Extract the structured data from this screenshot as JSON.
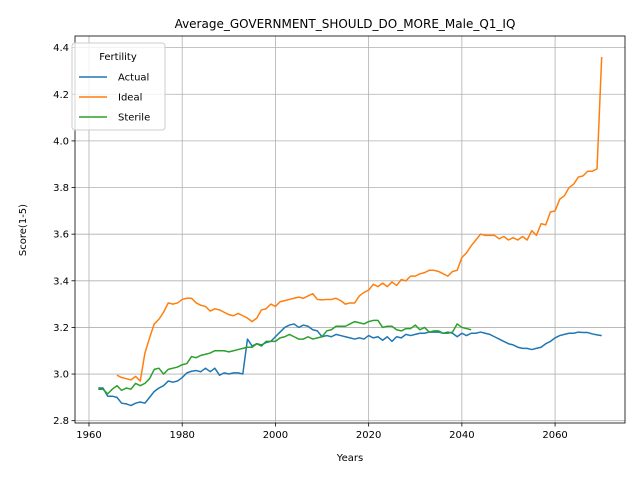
{
  "chart_data": {
    "type": "line",
    "title": "Average_GOVERNMENT_SHOULD_DO_MORE_Male_Q1_IQ",
    "xlabel": "Years",
    "ylabel": "Score(1-5)",
    "xlim": [
      1957,
      2075
    ],
    "ylim": [
      2.79,
      4.45
    ],
    "xticks": [
      1960,
      1980,
      2000,
      2020,
      2040,
      2060
    ],
    "yticks": [
      2.8,
      3.0,
      3.2,
      3.4,
      3.6,
      3.8,
      4.0,
      4.2,
      4.4
    ],
    "xtick_labels": [
      "1960",
      "1980",
      "2000",
      "2020",
      "2040",
      "2060"
    ],
    "ytick_labels": [
      "2.8",
      "3.0",
      "3.2",
      "3.4",
      "3.6",
      "3.8",
      "4.0",
      "4.2",
      "4.4"
    ],
    "grid": true,
    "legend": {
      "title": "Fertility",
      "position": "top-left"
    },
    "series": [
      {
        "name": "Actual",
        "color": "#1f77b4",
        "x": [
          1962,
          1963,
          1964,
          1965,
          1966,
          1967,
          1968,
          1969,
          1970,
          1971,
          1972,
          1973,
          1974,
          1975,
          1976,
          1977,
          1978,
          1979,
          1980,
          1981,
          1982,
          1983,
          1984,
          1985,
          1986,
          1987,
          1988,
          1989,
          1990,
          1991,
          1992,
          1993,
          1994,
          1995,
          1996,
          1997,
          1998,
          1999,
          2000,
          2001,
          2002,
          2003,
          2004,
          2005,
          2006,
          2007,
          2008,
          2009,
          2010,
          2011,
          2012,
          2013,
          2014,
          2015,
          2016,
          2017,
          2018,
          2019,
          2020,
          2021,
          2022,
          2023,
          2024,
          2025,
          2026,
          2027,
          2028,
          2029,
          2030,
          2031,
          2032,
          2033,
          2034,
          2035,
          2036,
          2037,
          2038,
          2039,
          2040,
          2041,
          2042,
          2043,
          2044,
          2045,
          2046,
          2047,
          2048,
          2049,
          2050,
          2051,
          2052,
          2053,
          2054,
          2055,
          2056,
          2057,
          2058,
          2059,
          2060,
          2061,
          2062,
          2063,
          2064,
          2065,
          2066,
          2067,
          2068,
          2069,
          2070
        ],
        "y": [
          2.94,
          2.94,
          2.905,
          2.905,
          2.9,
          2.875,
          2.872,
          2.865,
          2.875,
          2.88,
          2.875,
          2.9,
          2.925,
          2.94,
          2.95,
          2.97,
          2.965,
          2.97,
          2.985,
          3.005,
          3.012,
          3.015,
          3.01,
          3.025,
          3.01,
          3.025,
          2.995,
          3.005,
          3.0,
          3.005,
          3.005,
          3.0,
          3.15,
          3.12,
          3.13,
          3.125,
          3.135,
          3.14,
          3.16,
          3.18,
          3.2,
          3.21,
          3.215,
          3.2,
          3.21,
          3.205,
          3.19,
          3.185,
          3.16,
          3.165,
          3.16,
          3.17,
          3.165,
          3.16,
          3.155,
          3.15,
          3.155,
          3.15,
          3.165,
          3.155,
          3.16,
          3.145,
          3.16,
          3.14,
          3.16,
          3.155,
          3.17,
          3.165,
          3.17,
          3.175,
          3.175,
          3.18,
          3.18,
          3.18,
          3.175,
          3.18,
          3.175,
          3.16,
          3.175,
          3.165,
          3.175,
          3.175,
          3.18,
          3.175,
          3.17,
          3.16,
          3.15,
          3.14,
          3.13,
          3.125,
          3.115,
          3.11,
          3.11,
          3.105,
          3.11,
          3.115,
          3.13,
          3.14,
          3.155,
          3.165,
          3.17,
          3.175,
          3.175,
          3.18,
          3.178,
          3.178,
          3.172,
          3.168,
          3.165
        ]
      },
      {
        "name": "Ideal",
        "color": "#ff7f0e",
        "x": [
          1966,
          1967,
          1968,
          1969,
          1970,
          1971,
          1972,
          1973,
          1974,
          1975,
          1976,
          1977,
          1978,
          1979,
          1980,
          1981,
          1982,
          1983,
          1984,
          1985,
          1986,
          1987,
          1988,
          1989,
          1990,
          1991,
          1992,
          1993,
          1994,
          1995,
          1996,
          1997,
          1998,
          1999,
          2000,
          2001,
          2002,
          2003,
          2004,
          2005,
          2006,
          2007,
          2008,
          2009,
          2010,
          2011,
          2012,
          2013,
          2014,
          2015,
          2016,
          2017,
          2018,
          2019,
          2020,
          2021,
          2022,
          2023,
          2024,
          2025,
          2026,
          2027,
          2028,
          2029,
          2030,
          2031,
          2032,
          2033,
          2034,
          2035,
          2036,
          2037,
          2038,
          2039,
          2040,
          2041,
          2042,
          2043,
          2044,
          2045,
          2046,
          2047,
          2048,
          2049,
          2050,
          2051,
          2052,
          2053,
          2054,
          2055,
          2056,
          2057,
          2058,
          2059,
          2060,
          2061,
          2062,
          2063,
          2064,
          2065,
          2066,
          2067,
          2068,
          2069,
          2070
        ],
        "y": [
          2.995,
          2.985,
          2.98,
          2.975,
          2.99,
          2.97,
          3.09,
          3.155,
          3.215,
          3.235,
          3.265,
          3.305,
          3.3,
          3.305,
          3.32,
          3.325,
          3.325,
          3.305,
          3.295,
          3.29,
          3.27,
          3.28,
          3.275,
          3.265,
          3.255,
          3.25,
          3.26,
          3.25,
          3.24,
          3.225,
          3.24,
          3.275,
          3.28,
          3.3,
          3.29,
          3.31,
          3.315,
          3.32,
          3.325,
          3.33,
          3.325,
          3.335,
          3.345,
          3.32,
          3.318,
          3.32,
          3.32,
          3.325,
          3.315,
          3.3,
          3.305,
          3.305,
          3.335,
          3.35,
          3.36,
          3.385,
          3.375,
          3.39,
          3.375,
          3.395,
          3.38,
          3.405,
          3.4,
          3.42,
          3.42,
          3.43,
          3.435,
          3.445,
          3.445,
          3.44,
          3.43,
          3.42,
          3.44,
          3.445,
          3.5,
          3.52,
          3.55,
          3.575,
          3.6,
          3.595,
          3.595,
          3.595,
          3.58,
          3.59,
          3.575,
          3.585,
          3.575,
          3.59,
          3.575,
          3.615,
          3.595,
          3.645,
          3.64,
          3.695,
          3.7,
          3.75,
          3.765,
          3.8,
          3.815,
          3.845,
          3.85,
          3.87,
          3.87,
          3.88,
          4.36
        ]
      },
      {
        "name": "Sterile",
        "color": "#2ca02c",
        "x": [
          1962,
          1963,
          1964,
          1965,
          1966,
          1967,
          1968,
          1969,
          1970,
          1971,
          1972,
          1973,
          1974,
          1975,
          1976,
          1977,
          1978,
          1979,
          1980,
          1981,
          1982,
          1983,
          1984,
          1985,
          1986,
          1987,
          1988,
          1989,
          1990,
          1991,
          1992,
          1993,
          1994,
          1995,
          1996,
          1997,
          1998,
          1999,
          2000,
          2001,
          2002,
          2003,
          2004,
          2005,
          2006,
          2007,
          2008,
          2009,
          2010,
          2011,
          2012,
          2013,
          2014,
          2015,
          2016,
          2017,
          2018,
          2019,
          2020,
          2021,
          2022,
          2023,
          2024,
          2025,
          2026,
          2027,
          2028,
          2029,
          2030,
          2031,
          2032,
          2033,
          2034,
          2035,
          2036,
          2037,
          2038,
          2039,
          2040,
          2041,
          2042
        ],
        "y": [
          2.935,
          2.935,
          2.915,
          2.935,
          2.95,
          2.93,
          2.94,
          2.935,
          2.96,
          2.95,
          2.96,
          2.98,
          3.02,
          3.025,
          3.0,
          3.02,
          3.025,
          3.03,
          3.04,
          3.045,
          3.075,
          3.07,
          3.08,
          3.085,
          3.09,
          3.1,
          3.1,
          3.1,
          3.095,
          3.1,
          3.105,
          3.11,
          3.115,
          3.115,
          3.13,
          3.12,
          3.14,
          3.14,
          3.14,
          3.155,
          3.16,
          3.17,
          3.16,
          3.15,
          3.15,
          3.16,
          3.15,
          3.155,
          3.16,
          3.185,
          3.19,
          3.205,
          3.205,
          3.205,
          3.215,
          3.225,
          3.22,
          3.215,
          3.225,
          3.23,
          3.23,
          3.2,
          3.205,
          3.205,
          3.19,
          3.185,
          3.195,
          3.195,
          3.21,
          3.19,
          3.2,
          3.18,
          3.185,
          3.185,
          3.175,
          3.175,
          3.18,
          3.215,
          3.2,
          3.195,
          3.19
        ]
      }
    ]
  }
}
